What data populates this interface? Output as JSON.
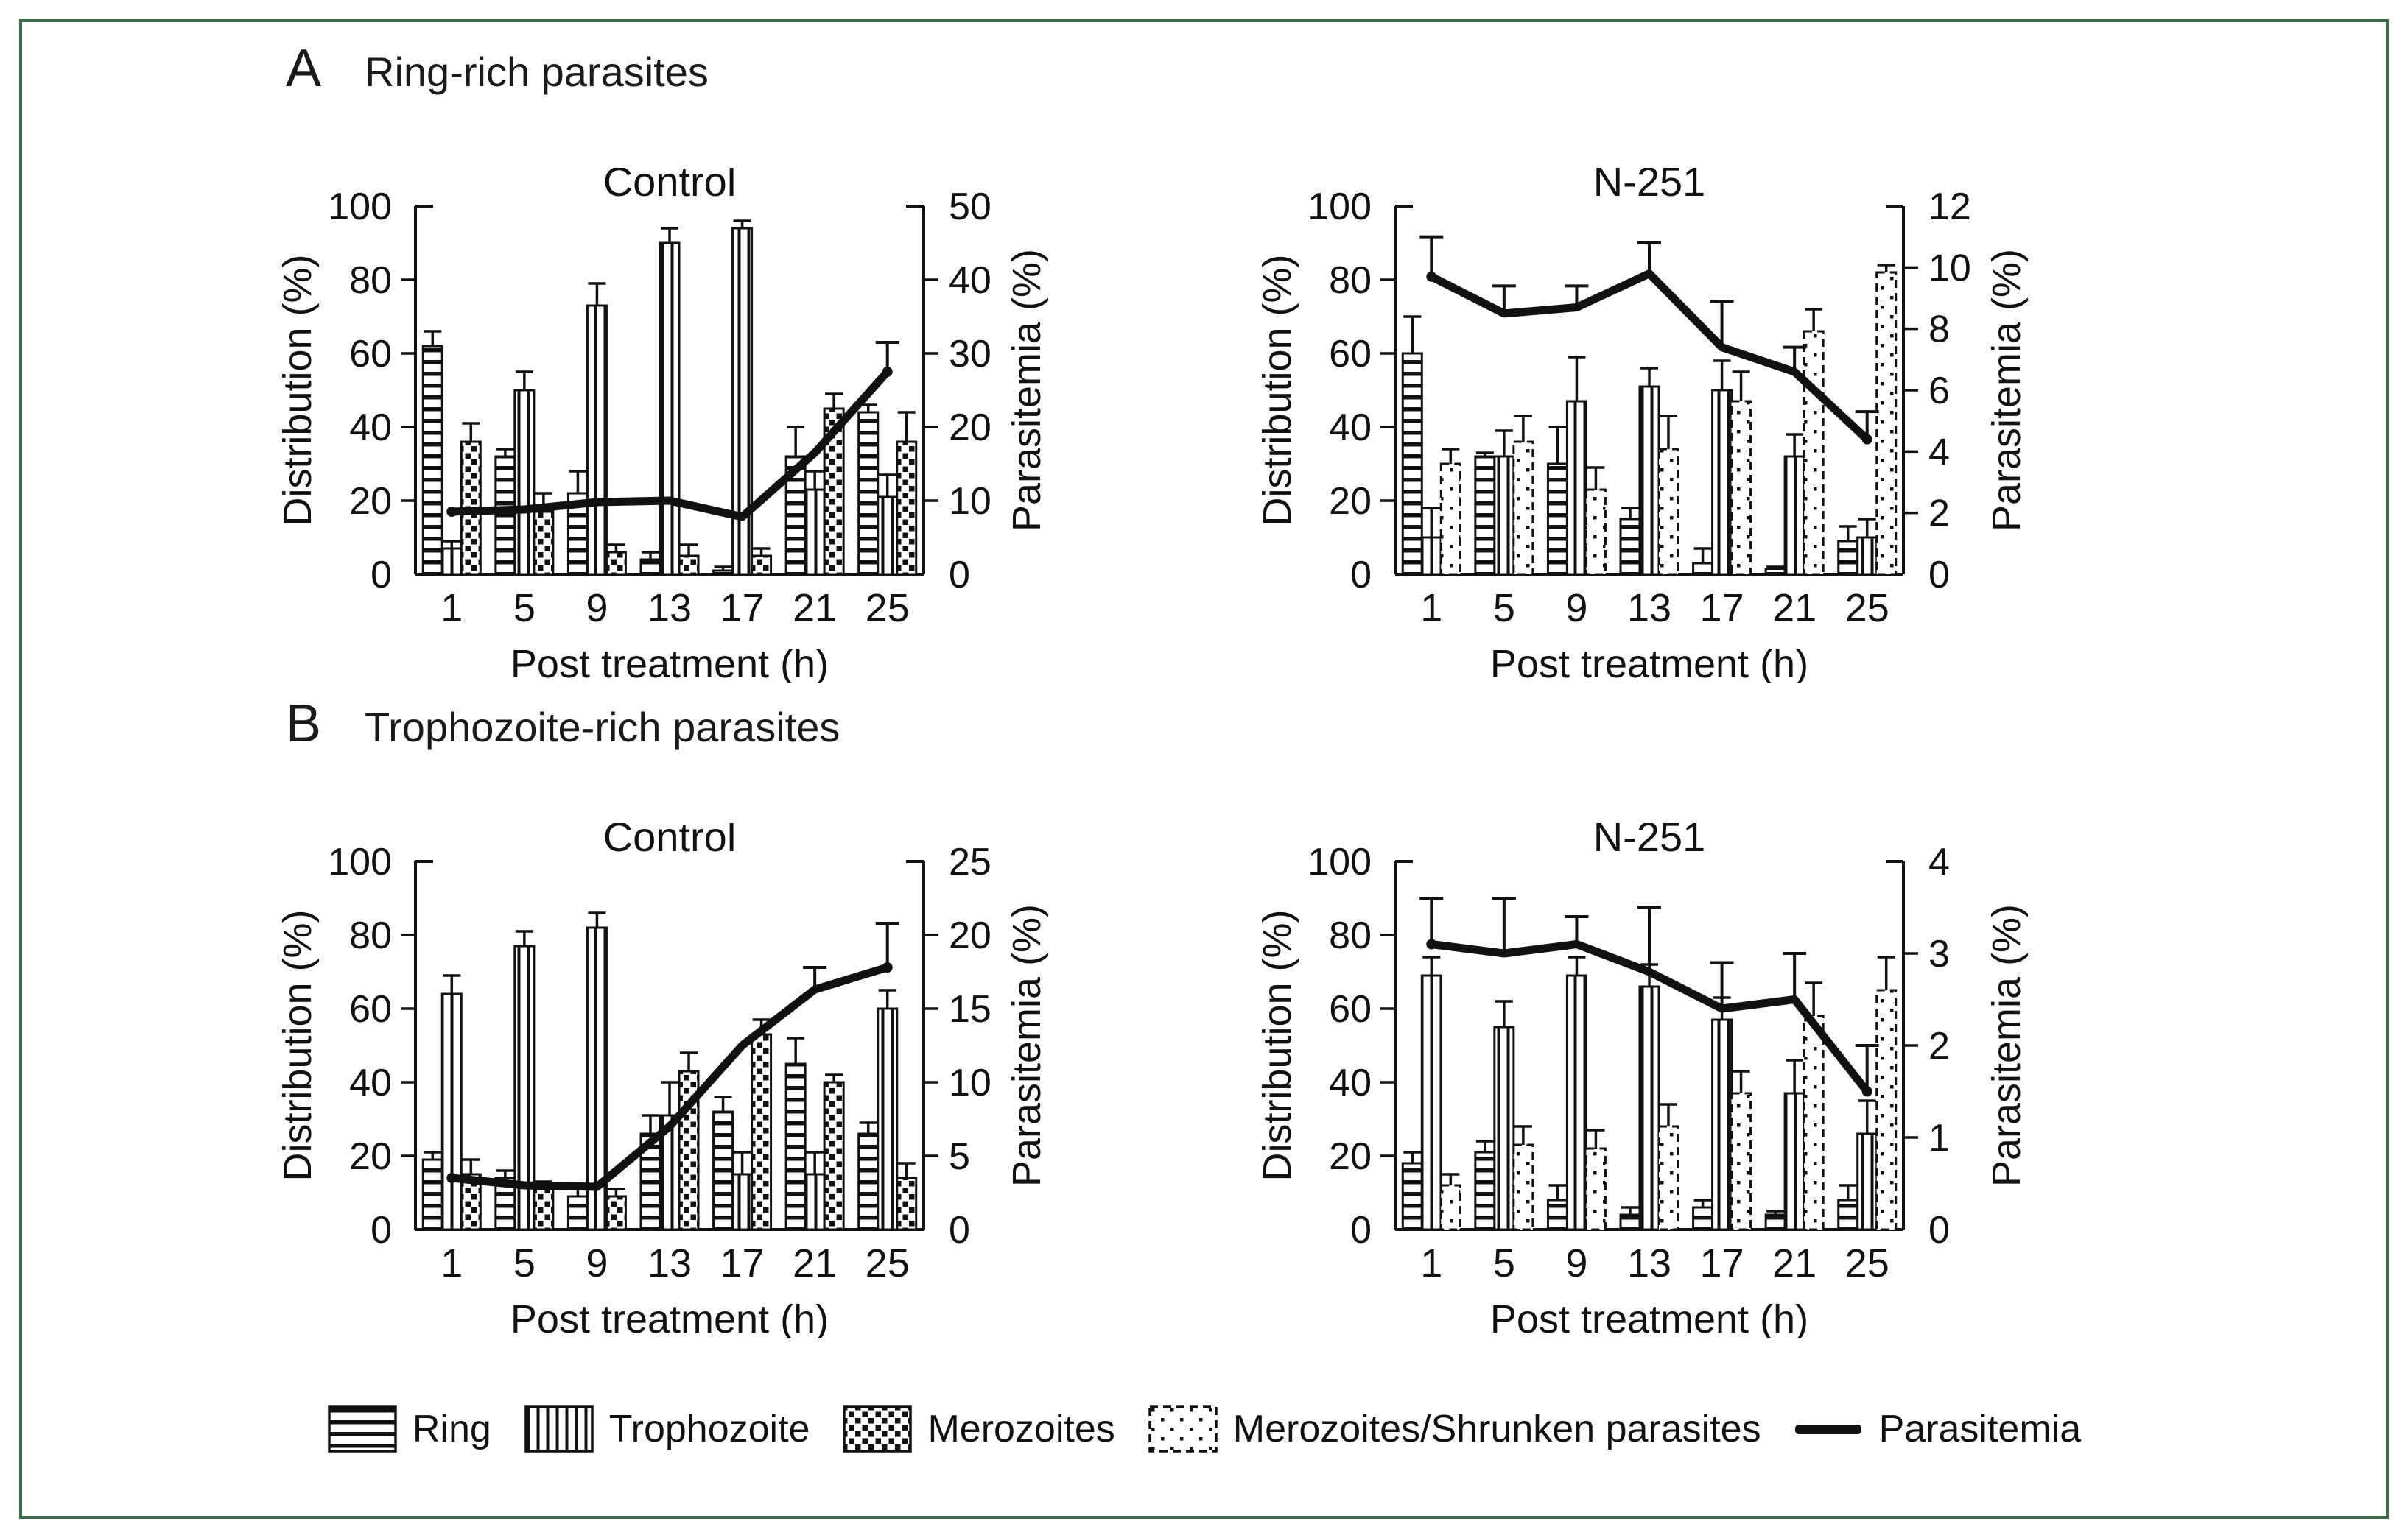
{
  "figure": {
    "border_color": "#3a6b47",
    "ink_color": "#111111",
    "panels": [
      {
        "label": "A",
        "title": "Ring-rich parasites"
      },
      {
        "label": "B",
        "title": "Trophozoite-rich parasites"
      }
    ],
    "legend": [
      {
        "name": "Ring",
        "pattern": "ring"
      },
      {
        "name": "Trophozoite",
        "pattern": "trophozoite"
      },
      {
        "name": "Merozoites",
        "pattern": "merozoites"
      },
      {
        "name": "Merozoites/Shrunken parasites",
        "pattern": "shrunken"
      },
      {
        "name": "Parasitemia",
        "pattern": "line"
      }
    ]
  },
  "chart_data": [
    {
      "id": "a-control",
      "panel": "A",
      "type": "bar",
      "title": "Control",
      "xlabel": "Post treatment (h)",
      "y_left_label": "Distribution (%)",
      "y_right_label": "Parasitemia (%)",
      "categories": [
        "1",
        "5",
        "9",
        "13",
        "17",
        "21",
        "25"
      ],
      "y_left": {
        "min": 0,
        "max": 100,
        "step": 20
      },
      "y_right": {
        "min": 0,
        "max": 50,
        "step": 10
      },
      "grid": false,
      "series": [
        {
          "name": "Ring",
          "pattern": "ring",
          "values": [
            62,
            32,
            22,
            4,
            1,
            32,
            44
          ],
          "errors_top": [
            66,
            34,
            28,
            6,
            2,
            40,
            46
          ]
        },
        {
          "name": "Trophozoite",
          "pattern": "trophozoite",
          "values": [
            7,
            50,
            73,
            90,
            94,
            23,
            21
          ],
          "errors_top": [
            9,
            55,
            79,
            94,
            96,
            28,
            27
          ]
        },
        {
          "name": "Merozoites",
          "pattern": "merozoites",
          "values": [
            36,
            17,
            6,
            5,
            5,
            45,
            36
          ],
          "errors_top": [
            41,
            22,
            8,
            8,
            7,
            49,
            44
          ]
        }
      ],
      "line": {
        "name": "Parasitemia",
        "axis": "right",
        "values": [
          8.5,
          8.8,
          9.8,
          10,
          7.8,
          16.5,
          27.5
        ],
        "errors_top": [
          null,
          null,
          null,
          null,
          null,
          null,
          31.5
        ]
      }
    },
    {
      "id": "a-n251",
      "panel": "A",
      "type": "bar",
      "title": "N-251",
      "xlabel": "Post treatment (h)",
      "y_left_label": "Distribution (%)",
      "y_right_label": "Parasitemia (%)",
      "categories": [
        "1",
        "5",
        "9",
        "13",
        "17",
        "21",
        "25"
      ],
      "y_left": {
        "min": 0,
        "max": 100,
        "step": 20
      },
      "y_right": {
        "min": 0,
        "max": 12,
        "step": 2
      },
      "grid": false,
      "series": [
        {
          "name": "Ring",
          "pattern": "ring",
          "values": [
            60,
            32,
            30,
            15,
            3,
            1.5,
            9
          ],
          "errors_top": [
            70,
            33,
            40,
            18,
            7,
            2,
            13
          ]
        },
        {
          "name": "Trophozoite",
          "pattern": "trophozoite",
          "values": [
            10,
            32,
            47,
            51,
            50,
            32,
            10
          ],
          "errors_top": [
            18,
            39,
            59,
            56,
            58,
            38,
            15
          ]
        },
        {
          "name": "Merozoites/Shrunken parasites",
          "pattern": "shrunken",
          "values": [
            30,
            36,
            23,
            34,
            47,
            66,
            82
          ],
          "errors_top": [
            34,
            43,
            29,
            43,
            55,
            72,
            84
          ]
        }
      ],
      "line": {
        "name": "Parasitemia",
        "axis": "right",
        "values": [
          9.7,
          8.5,
          8.7,
          9.8,
          7.4,
          6.6,
          4.4
        ],
        "errors_top": [
          11,
          9.4,
          9.4,
          10.8,
          8.9,
          7.4,
          5.3
        ]
      }
    },
    {
      "id": "b-control",
      "panel": "B",
      "type": "bar",
      "title": "Control",
      "xlabel": "Post treatment (h)",
      "y_left_label": "Distribution (%)",
      "y_right_label": "Parasitemia (%)",
      "categories": [
        "1",
        "5",
        "9",
        "13",
        "17",
        "21",
        "25"
      ],
      "y_left": {
        "min": 0,
        "max": 100,
        "step": 20
      },
      "y_right": {
        "min": 0,
        "max": 25,
        "step": 5
      },
      "grid": false,
      "series": [
        {
          "name": "Ring",
          "pattern": "ring",
          "values": [
            19,
            14,
            9,
            26,
            32,
            45,
            26
          ],
          "errors_top": [
            21,
            16,
            11,
            31,
            36,
            52,
            29
          ]
        },
        {
          "name": "Trophozoite",
          "pattern": "trophozoite",
          "values": [
            64,
            77,
            82,
            31,
            15,
            15,
            60
          ],
          "errors_top": [
            69,
            81,
            86,
            40,
            21,
            21,
            65
          ]
        },
        {
          "name": "Merozoites",
          "pattern": "merozoites",
          "values": [
            15,
            11,
            9,
            43,
            53,
            40,
            14
          ],
          "errors_top": [
            19,
            13,
            11,
            48,
            57,
            42,
            18
          ]
        }
      ],
      "line": {
        "name": "Parasitemia",
        "axis": "right",
        "values": [
          3.5,
          3.0,
          2.9,
          7.0,
          12.5,
          16.3,
          17.8
        ],
        "errors_top": [
          null,
          null,
          null,
          null,
          null,
          17.8,
          20.8
        ]
      }
    },
    {
      "id": "b-n251",
      "panel": "B",
      "type": "bar",
      "title": "N-251",
      "xlabel": "Post treatment (h)",
      "y_left_label": "Distribution (%)",
      "y_right_label": "Parasitemia (%)",
      "categories": [
        "1",
        "5",
        "9",
        "13",
        "17",
        "21",
        "25"
      ],
      "y_left": {
        "min": 0,
        "max": 100,
        "step": 20
      },
      "y_right": {
        "min": 0,
        "max": 4,
        "step": 1
      },
      "grid": false,
      "series": [
        {
          "name": "Ring",
          "pattern": "ring",
          "values": [
            18,
            21,
            8,
            4,
            6,
            4,
            8
          ],
          "errors_top": [
            21,
            24,
            12,
            6,
            8,
            5,
            12
          ]
        },
        {
          "name": "Trophozoite",
          "pattern": "trophozoite",
          "values": [
            69,
            55,
            69,
            66,
            57,
            37,
            26
          ],
          "errors_top": [
            74,
            62,
            74,
            72,
            63,
            46,
            35
          ]
        },
        {
          "name": "Merozoites/Shrunken parasites",
          "pattern": "shrunken",
          "values": [
            12,
            23,
            22,
            28,
            37,
            58,
            65
          ],
          "errors_top": [
            15,
            28,
            27,
            34,
            43,
            67,
            74
          ]
        }
      ],
      "line": {
        "name": "Parasitemia",
        "axis": "right",
        "values": [
          3.1,
          3.0,
          3.1,
          2.8,
          2.4,
          2.5,
          1.5
        ],
        "errors_top": [
          3.6,
          3.6,
          3.4,
          3.5,
          2.9,
          3.0,
          2.0
        ]
      }
    }
  ]
}
